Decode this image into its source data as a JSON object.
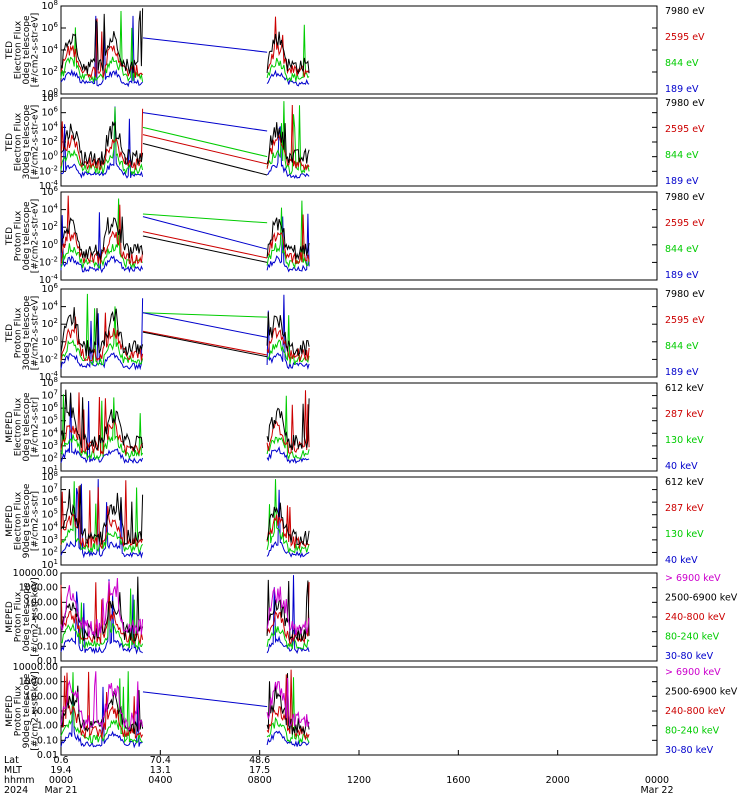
{
  "chart_data": [
    {
      "type": "line",
      "ylabel_lines": [
        "TED",
        "Electron Flux",
        "0deg telescope",
        "[#/cm2-s-str-eV]"
      ],
      "yscale": "log",
      "ylim_exp": [
        0,
        8
      ],
      "ytick_labels": [
        {
          "base": "10",
          "exp": "0"
        },
        {
          "base": "10",
          "exp": "2"
        },
        {
          "base": "10",
          "exp": "4"
        },
        {
          "base": "10",
          "exp": "6"
        },
        {
          "base": "10",
          "exp": "8"
        }
      ],
      "legend": [
        {
          "label": "7980 eV",
          "color": "#000000"
        },
        {
          "label": "2595 eV",
          "color": "#cc0000"
        },
        {
          "label": "844 eV",
          "color": "#00cc00"
        },
        {
          "label": "189 eV",
          "color": "#0000cc"
        }
      ],
      "gap_lines": [
        {
          "color": "#0000cc",
          "start_exp": 5.1,
          "end_exp": 3.8
        }
      ]
    },
    {
      "type": "line",
      "ylabel_lines": [
        "TED",
        "Electron Flux",
        "30deg telescope",
        "[#/cm2-s-str-eV]"
      ],
      "yscale": "log",
      "ylim_exp": [
        -4,
        8
      ],
      "ytick_labels": [
        {
          "base": "10",
          "exp": "-4"
        },
        {
          "base": "10",
          "exp": "-2"
        },
        {
          "base": "10",
          "exp": "0"
        },
        {
          "base": "10",
          "exp": "2"
        },
        {
          "base": "10",
          "exp": "4"
        },
        {
          "base": "10",
          "exp": "6"
        },
        {
          "base": "10",
          "exp": "8"
        }
      ],
      "legend": [
        {
          "label": "7980 eV",
          "color": "#000000"
        },
        {
          "label": "2595 eV",
          "color": "#cc0000"
        },
        {
          "label": "844 eV",
          "color": "#00cc00"
        },
        {
          "label": "189 eV",
          "color": "#0000cc"
        }
      ],
      "gap_lines": [
        {
          "color": "#0000cc",
          "start_exp": 6.0,
          "end_exp": 3.5
        },
        {
          "color": "#00cc00",
          "start_exp": 4.0,
          "end_exp": 0.0
        },
        {
          "color": "#cc0000",
          "start_exp": 3.0,
          "end_exp": -1.0
        },
        {
          "color": "#000000",
          "start_exp": 1.8,
          "end_exp": -2.5
        }
      ]
    },
    {
      "type": "line",
      "ylabel_lines": [
        "TED",
        "Proton Flux",
        "0deg telescope",
        "[#/cm2-s-str-eV]"
      ],
      "yscale": "log",
      "ylim_exp": [
        -4,
        6
      ],
      "ytick_labels": [
        {
          "base": "10",
          "exp": "-4"
        },
        {
          "base": "10",
          "exp": "-2"
        },
        {
          "base": "10",
          "exp": "0"
        },
        {
          "base": "10",
          "exp": "2"
        },
        {
          "base": "10",
          "exp": "4"
        },
        {
          "base": "10",
          "exp": "6"
        }
      ],
      "legend": [
        {
          "label": "7980 eV",
          "color": "#000000"
        },
        {
          "label": "2595 eV",
          "color": "#cc0000"
        },
        {
          "label": "844 eV",
          "color": "#00cc00"
        },
        {
          "label": "189 eV",
          "color": "#0000cc"
        }
      ],
      "gap_lines": [
        {
          "color": "#00cc00",
          "start_exp": 3.5,
          "end_exp": 2.5
        },
        {
          "color": "#0000cc",
          "start_exp": 3.2,
          "end_exp": -0.5
        },
        {
          "color": "#cc0000",
          "start_exp": 1.5,
          "end_exp": -1.5
        },
        {
          "color": "#000000",
          "start_exp": 1.0,
          "end_exp": -2.0
        }
      ]
    },
    {
      "type": "line",
      "ylabel_lines": [
        "TED",
        "Proton Flux",
        "30deg telescope",
        "[#/cm2-s-str-eV]"
      ],
      "yscale": "log",
      "ylim_exp": [
        -4,
        6
      ],
      "ytick_labels": [
        {
          "base": "10",
          "exp": "-4"
        },
        {
          "base": "10",
          "exp": "-2"
        },
        {
          "base": "10",
          "exp": "0"
        },
        {
          "base": "10",
          "exp": "2"
        },
        {
          "base": "10",
          "exp": "4"
        },
        {
          "base": "10",
          "exp": "6"
        }
      ],
      "legend": [
        {
          "label": "7980 eV",
          "color": "#000000"
        },
        {
          "label": "2595 eV",
          "color": "#cc0000"
        },
        {
          "label": "844 eV",
          "color": "#00cc00"
        },
        {
          "label": "189 eV",
          "color": "#0000cc"
        }
      ],
      "gap_lines": [
        {
          "color": "#00cc00",
          "start_exp": 3.3,
          "end_exp": 2.8
        },
        {
          "color": "#0000cc",
          "start_exp": 3.3,
          "end_exp": 0.5
        },
        {
          "color": "#cc0000",
          "start_exp": 1.2,
          "end_exp": -1.5
        },
        {
          "color": "#000000",
          "start_exp": 1.1,
          "end_exp": -1.7
        }
      ]
    },
    {
      "type": "line",
      "ylabel_lines": [
        "MEPED",
        "Electron Flux",
        "0deg telescope",
        "[#/cm2-s-str]"
      ],
      "yscale": "log",
      "ylim_exp": [
        1,
        8
      ],
      "ytick_labels": [
        {
          "base": "10",
          "exp": "1"
        },
        {
          "base": "10",
          "exp": "2"
        },
        {
          "base": "10",
          "exp": "3"
        },
        {
          "base": "10",
          "exp": "4"
        },
        {
          "base": "10",
          "exp": "5"
        },
        {
          "base": "10",
          "exp": "6"
        },
        {
          "base": "10",
          "exp": "7"
        },
        {
          "base": "10",
          "exp": "8"
        }
      ],
      "legend": [
        {
          "label": "612 keV",
          "color": "#000000"
        },
        {
          "label": "287 keV",
          "color": "#cc0000"
        },
        {
          "label": "130 keV",
          "color": "#00cc00"
        },
        {
          "label": "40 keV",
          "color": "#0000cc"
        }
      ],
      "gap_lines": []
    },
    {
      "type": "line",
      "ylabel_lines": [
        "MEPED",
        "Electron Flux",
        "90deg telescope",
        "[#/cm2-s-str]"
      ],
      "yscale": "log",
      "ylim_exp": [
        1,
        8
      ],
      "ytick_labels": [
        {
          "base": "10",
          "exp": "1"
        },
        {
          "base": "10",
          "exp": "2"
        },
        {
          "base": "10",
          "exp": "3"
        },
        {
          "base": "10",
          "exp": "4"
        },
        {
          "base": "10",
          "exp": "5"
        },
        {
          "base": "10",
          "exp": "6"
        },
        {
          "base": "10",
          "exp": "7"
        },
        {
          "base": "10",
          "exp": "8"
        }
      ],
      "legend": [
        {
          "label": "612 keV",
          "color": "#000000"
        },
        {
          "label": "287 keV",
          "color": "#cc0000"
        },
        {
          "label": "130 keV",
          "color": "#00cc00"
        },
        {
          "label": "40 keV",
          "color": "#0000cc"
        }
      ],
      "gap_lines": []
    },
    {
      "type": "line",
      "ylabel_lines": [
        "MEPED",
        "Proton Flux",
        "0deg telescope",
        "[#/cm2-s-str-keV]"
      ],
      "yscale": "log",
      "ylim_exp": [
        -2,
        4
      ],
      "ytick_labels": [
        {
          "base": "0.01"
        },
        {
          "base": "0.10"
        },
        {
          "base": "1.00"
        },
        {
          "base": "10.00"
        },
        {
          "base": "100.00"
        },
        {
          "base": "1000.00"
        },
        {
          "base": "10000.00"
        }
      ],
      "legend": [
        {
          "label": "> 6900 keV",
          "color": "#cc00cc"
        },
        {
          "label": "2500-6900 keV",
          "color": "#000000"
        },
        {
          "label": "240-800 keV",
          "color": "#cc0000"
        },
        {
          "label": "80-240 keV",
          "color": "#00cc00"
        },
        {
          "label": "30-80 keV",
          "color": "#0000cc"
        }
      ],
      "gap_lines": []
    },
    {
      "type": "line",
      "ylabel_lines": [
        "MEPED",
        "Proton Flux",
        "90deg telescope",
        "[#/cm2-s-str-keV]"
      ],
      "yscale": "log",
      "ylim_exp": [
        -2,
        4
      ],
      "ytick_labels": [
        {
          "base": "0.01"
        },
        {
          "base": "0.10"
        },
        {
          "base": "1.00"
        },
        {
          "base": "10.00"
        },
        {
          "base": "100.00"
        },
        {
          "base": "1000.00"
        },
        {
          "base": "10000.00"
        }
      ],
      "legend": [
        {
          "label": "> 6900 keV",
          "color": "#cc00cc"
        },
        {
          "label": "2500-6900 keV",
          "color": "#000000"
        },
        {
          "label": "240-800 keV",
          "color": "#cc0000"
        },
        {
          "label": "80-240 keV",
          "color": "#00cc00"
        },
        {
          "label": "30-80 keV",
          "color": "#0000cc"
        }
      ],
      "gap_lines": [
        {
          "color": "#0000cc",
          "start_exp": 2.3,
          "end_exp": 1.3
        }
      ]
    }
  ],
  "time_axis": {
    "row_labels": [
      "Lat",
      "MLT",
      "hhmm",
      "2024"
    ],
    "columns": [
      {
        "hour": 0,
        "lat": "0.6",
        "mlt": "19.4",
        "hhmm": "0000",
        "date": "Mar 21"
      },
      {
        "hour": 4,
        "lat": "70.4",
        "mlt": "13.1",
        "hhmm": "0400",
        "date": ""
      },
      {
        "hour": 8,
        "lat": "48.6",
        "mlt": "17.5",
        "hhmm": "0800",
        "date": ""
      },
      {
        "hour": 12,
        "lat": "",
        "mlt": "",
        "hhmm": "1200",
        "date": ""
      },
      {
        "hour": 16,
        "lat": "",
        "mlt": "",
        "hhmm": "1600",
        "date": ""
      },
      {
        "hour": 20,
        "lat": "",
        "mlt": "",
        "hhmm": "2000",
        "date": ""
      },
      {
        "hour": 24,
        "lat": "",
        "mlt": "",
        "hhmm": "0000",
        "date": "Mar 22"
      }
    ],
    "xlim_hours": [
      0,
      24
    ],
    "data_segments_hours": [
      [
        0,
        3.3
      ],
      [
        8.3,
        10.0
      ]
    ]
  }
}
